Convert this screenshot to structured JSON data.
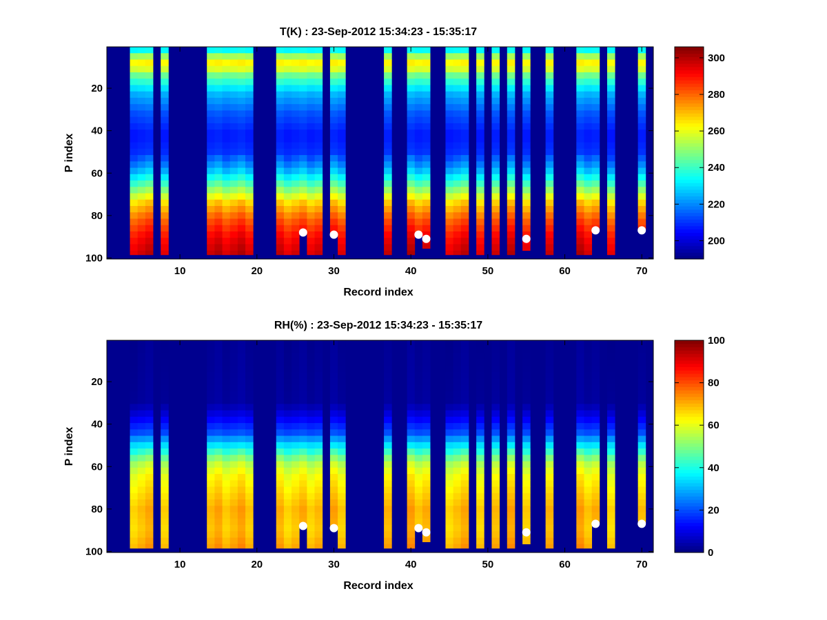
{
  "chart_data": [
    {
      "type": "heatmap",
      "title": "T(K) : 23-Sep-2012 15:34:23 - 15:35:17",
      "xlabel": "Record index",
      "ylabel": "P index",
      "xlim": [
        0.5,
        71.5
      ],
      "ylim": [
        0.5,
        100.5
      ],
      "y_reversed": true,
      "colormap": "jet",
      "clim": [
        190,
        306
      ],
      "xticks": [
        10,
        20,
        30,
        40,
        50,
        60,
        70
      ],
      "yticks": [
        20,
        40,
        60,
        80,
        100
      ],
      "colorbar_ticks": [
        200,
        220,
        240,
        260,
        280,
        300
      ],
      "background_color": "#00008f",
      "grid": false,
      "columns": [
        {
          "x": 4,
          "top": 1,
          "bottom": 98
        },
        {
          "x": 5,
          "top": 1,
          "bottom": 98
        },
        {
          "x": 6,
          "top": 1,
          "bottom": 98
        },
        {
          "x": 8,
          "top": 1,
          "bottom": 98
        },
        {
          "x": 14,
          "top": 1,
          "bottom": 98
        },
        {
          "x": 15,
          "top": 1,
          "bottom": 98
        },
        {
          "x": 16,
          "top": 1,
          "bottom": 98
        },
        {
          "x": 17,
          "top": 1,
          "bottom": 98
        },
        {
          "x": 18,
          "top": 1,
          "bottom": 98
        },
        {
          "x": 19,
          "top": 1,
          "bottom": 98
        },
        {
          "x": 23,
          "top": 1,
          "bottom": 98
        },
        {
          "x": 24,
          "top": 1,
          "bottom": 98
        },
        {
          "x": 25,
          "top": 1,
          "bottom": 98
        },
        {
          "x": 26,
          "top": 1,
          "bottom": 87
        },
        {
          "x": 27,
          "top": 1,
          "bottom": 98
        },
        {
          "x": 28,
          "top": 1,
          "bottom": 98
        },
        {
          "x": 30,
          "top": 1,
          "bottom": 88
        },
        {
          "x": 31,
          "top": 1,
          "bottom": 98
        },
        {
          "x": 37,
          "top": 1,
          "bottom": 98
        },
        {
          "x": 40,
          "top": 1,
          "bottom": 98
        },
        {
          "x": 41,
          "top": 1,
          "bottom": 88
        },
        {
          "x": 42,
          "top": 1,
          "bottom": 95
        },
        {
          "x": 45,
          "top": 1,
          "bottom": 98
        },
        {
          "x": 46,
          "top": 1,
          "bottom": 98
        },
        {
          "x": 47,
          "top": 1,
          "bottom": 98
        },
        {
          "x": 49,
          "top": 1,
          "bottom": 98
        },
        {
          "x": 51,
          "top": 1,
          "bottom": 98
        },
        {
          "x": 53,
          "top": 1,
          "bottom": 98
        },
        {
          "x": 55,
          "top": 1,
          "bottom": 96
        },
        {
          "x": 58,
          "top": 1,
          "bottom": 98
        },
        {
          "x": 62,
          "top": 1,
          "bottom": 98
        },
        {
          "x": 63,
          "top": 1,
          "bottom": 98
        },
        {
          "x": 64,
          "top": 1,
          "bottom": 86
        },
        {
          "x": 66,
          "top": 1,
          "bottom": 98
        },
        {
          "x": 70,
          "top": 1,
          "bottom": 86
        }
      ],
      "profile": [
        {
          "p": 1,
          "v": 228
        },
        {
          "p": 6,
          "v": 258
        },
        {
          "p": 9,
          "v": 266
        },
        {
          "p": 14,
          "v": 246
        },
        {
          "p": 22,
          "v": 226
        },
        {
          "p": 32,
          "v": 214
        },
        {
          "p": 42,
          "v": 207
        },
        {
          "p": 50,
          "v": 210
        },
        {
          "p": 58,
          "v": 224
        },
        {
          "p": 66,
          "v": 245
        },
        {
          "p": 74,
          "v": 268
        },
        {
          "p": 82,
          "v": 282
        },
        {
          "p": 90,
          "v": 292
        },
        {
          "p": 98,
          "v": 298
        }
      ],
      "markers": [
        {
          "x": 26,
          "y": 88
        },
        {
          "x": 30,
          "y": 89
        },
        {
          "x": 41,
          "y": 89
        },
        {
          "x": 42,
          "y": 91
        },
        {
          "x": 55,
          "y": 91
        },
        {
          "x": 64,
          "y": 87
        },
        {
          "x": 70,
          "y": 87
        }
      ]
    },
    {
      "type": "heatmap",
      "title": "RH(%) : 23-Sep-2012 15:34:23 - 15:35:17",
      "xlabel": "Record index",
      "ylabel": "P index",
      "xlim": [
        0.5,
        71.5
      ],
      "ylim": [
        0.5,
        100.5
      ],
      "y_reversed": true,
      "colormap": "jet",
      "clim": [
        0,
        100
      ],
      "xticks": [
        10,
        20,
        30,
        40,
        50,
        60,
        70
      ],
      "yticks": [
        20,
        40,
        60,
        80,
        100
      ],
      "colorbar_ticks": [
        0,
        20,
        40,
        60,
        80,
        100
      ],
      "background_color": "#00008f",
      "grid": false,
      "columns": [
        {
          "x": 4,
          "top": 1,
          "bottom": 98
        },
        {
          "x": 5,
          "top": 1,
          "bottom": 98
        },
        {
          "x": 6,
          "top": 1,
          "bottom": 98
        },
        {
          "x": 8,
          "top": 1,
          "bottom": 98
        },
        {
          "x": 14,
          "top": 1,
          "bottom": 98
        },
        {
          "x": 15,
          "top": 1,
          "bottom": 98
        },
        {
          "x": 16,
          "top": 1,
          "bottom": 98
        },
        {
          "x": 17,
          "top": 1,
          "bottom": 98
        },
        {
          "x": 18,
          "top": 1,
          "bottom": 98
        },
        {
          "x": 19,
          "top": 1,
          "bottom": 98
        },
        {
          "x": 23,
          "top": 1,
          "bottom": 98
        },
        {
          "x": 24,
          "top": 1,
          "bottom": 98
        },
        {
          "x": 25,
          "top": 1,
          "bottom": 98
        },
        {
          "x": 26,
          "top": 1,
          "bottom": 87
        },
        {
          "x": 27,
          "top": 1,
          "bottom": 98
        },
        {
          "x": 28,
          "top": 1,
          "bottom": 98
        },
        {
          "x": 30,
          "top": 1,
          "bottom": 88
        },
        {
          "x": 31,
          "top": 1,
          "bottom": 98
        },
        {
          "x": 37,
          "top": 1,
          "bottom": 98
        },
        {
          "x": 40,
          "top": 1,
          "bottom": 98
        },
        {
          "x": 41,
          "top": 1,
          "bottom": 88
        },
        {
          "x": 42,
          "top": 1,
          "bottom": 95
        },
        {
          "x": 45,
          "top": 1,
          "bottom": 98
        },
        {
          "x": 46,
          "top": 1,
          "bottom": 98
        },
        {
          "x": 47,
          "top": 1,
          "bottom": 98
        },
        {
          "x": 49,
          "top": 1,
          "bottom": 98
        },
        {
          "x": 51,
          "top": 1,
          "bottom": 98
        },
        {
          "x": 53,
          "top": 1,
          "bottom": 98
        },
        {
          "x": 55,
          "top": 1,
          "bottom": 96
        },
        {
          "x": 58,
          "top": 1,
          "bottom": 98
        },
        {
          "x": 62,
          "top": 1,
          "bottom": 98
        },
        {
          "x": 63,
          "top": 1,
          "bottom": 98
        },
        {
          "x": 64,
          "top": 1,
          "bottom": 86
        },
        {
          "x": 66,
          "top": 1,
          "bottom": 98
        },
        {
          "x": 70,
          "top": 1,
          "bottom": 86
        }
      ],
      "profile": [
        {
          "p": 1,
          "v": 2
        },
        {
          "p": 30,
          "v": 3
        },
        {
          "p": 36,
          "v": 10
        },
        {
          "p": 44,
          "v": 20
        },
        {
          "p": 52,
          "v": 40
        },
        {
          "p": 58,
          "v": 55
        },
        {
          "p": 64,
          "v": 62
        },
        {
          "p": 72,
          "v": 66
        },
        {
          "p": 80,
          "v": 70
        },
        {
          "p": 90,
          "v": 68
        },
        {
          "p": 98,
          "v": 72
        }
      ],
      "markers": [
        {
          "x": 26,
          "y": 88
        },
        {
          "x": 30,
          "y": 89
        },
        {
          "x": 41,
          "y": 89
        },
        {
          "x": 42,
          "y": 91
        },
        {
          "x": 55,
          "y": 91
        },
        {
          "x": 64,
          "y": 87
        },
        {
          "x": 70,
          "y": 87
        }
      ]
    }
  ]
}
